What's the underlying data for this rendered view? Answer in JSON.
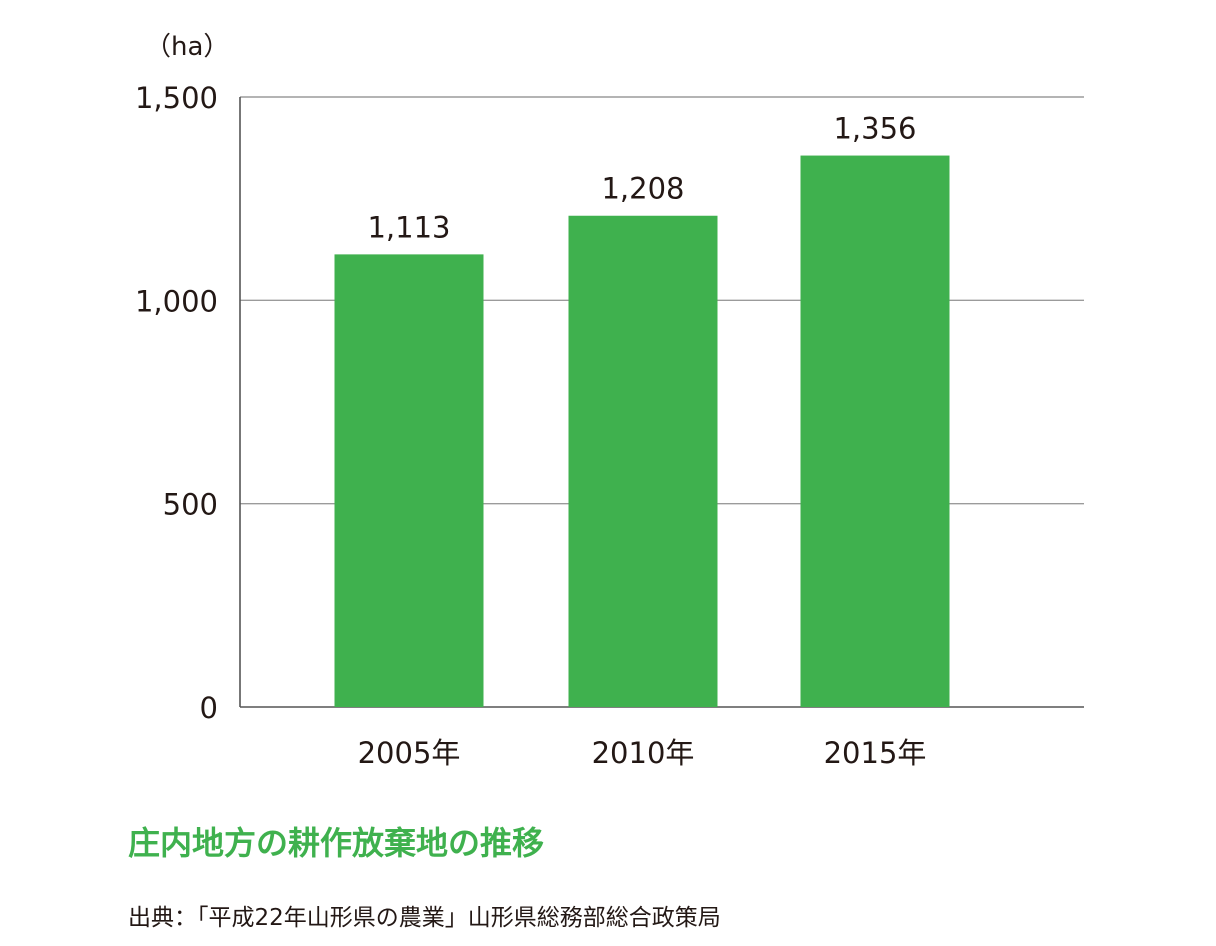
{
  "chart_data": {
    "type": "bar",
    "title": "庄内地方の耕作放棄地の推移",
    "ylabel": "（ha）",
    "xlabel": "",
    "categories": [
      "2005年",
      "2010年",
      "2015年"
    ],
    "values": [
      1113,
      1208,
      1356
    ],
    "value_labels": [
      "1,113",
      "1,208",
      "1,356"
    ],
    "ylim": [
      0,
      1500
    ],
    "yticks": [
      0,
      500,
      1000,
      1500
    ],
    "ytick_labels": [
      "0",
      "500",
      "1,000",
      "1,500"
    ],
    "grid": true,
    "bar_color": "#3fb14e"
  },
  "source": "出典：「平成22年山形県の農業」山形県総務部総合政策局"
}
